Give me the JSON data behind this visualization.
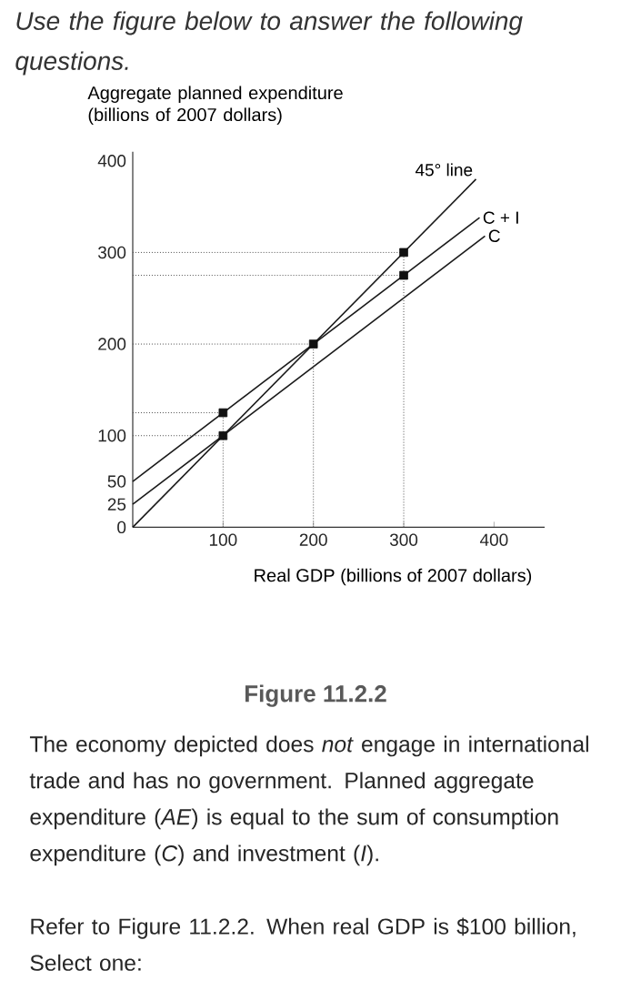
{
  "chart_data": {
    "type": "line",
    "title": "Use the figure below to answer the following questions.",
    "xlabel": "Real GDP (billions of 2007 dollars)",
    "ylabel": "Aggregate planned expenditure (billions of 2007 dollars)",
    "xlim": [
      0,
      456
    ],
    "ylim": [
      0,
      410
    ],
    "xticks": [
      100,
      200,
      300,
      400
    ],
    "yticks": [
      0,
      25,
      50,
      100,
      200,
      300,
      400
    ],
    "series": [
      {
        "name": "45° line",
        "color": "#1a1a1a",
        "x": [
          0,
          380
        ],
        "values": [
          0,
          380
        ]
      },
      {
        "name": "C + I",
        "color": "#1a1a1a",
        "x": [
          0,
          384
        ],
        "values": [
          50,
          338
        ]
      },
      {
        "name": "C",
        "color": "#1a1a1a",
        "x": [
          0,
          390
        ],
        "values": [
          25,
          318
        ]
      },
      {
        "line_style": "dotted",
        "color": "#4c4c4c",
        "x": [
          0,
          300
        ],
        "values": [
          300,
          300
        ]
      },
      {
        "line_style": "dotted",
        "color": "#4c4c4c",
        "x": [
          0,
          300
        ],
        "values": [
          275,
          275
        ]
      },
      {
        "line_style": "dotted",
        "color": "#4c4c4c",
        "x": [
          0,
          200
        ],
        "values": [
          200,
          200
        ]
      },
      {
        "line_style": "dotted",
        "color": "#4c4c4c",
        "x": [
          0,
          100
        ],
        "values": [
          125,
          125
        ]
      },
      {
        "line_style": "dotted",
        "color": "#4c4c4c",
        "x": [
          0,
          100
        ],
        "values": [
          100,
          100
        ]
      },
      {
        "line_style": "dotted",
        "color": "#4c4c4c",
        "x": [
          100,
          100
        ],
        "values": [
          0,
          125
        ]
      },
      {
        "line_style": "dotted",
        "color": "#4c4c4c",
        "x": [
          200,
          200
        ],
        "values": [
          0,
          200
        ]
      },
      {
        "line_style": "dotted",
        "color": "#4c4c4c",
        "x": [
          300,
          300
        ],
        "values": [
          0,
          300
        ]
      },
      {
        "type": "scatter",
        "marker": "square",
        "color": "#111111",
        "x": [
          100,
          100,
          200,
          300,
          300
        ],
        "values": [
          125,
          100,
          200,
          300,
          275
        ]
      }
    ],
    "annotations": [
      "Figure 11.2.2",
      "The economy depicted does *not* engage in international trade and has no government. Planned aggregate expenditure (*AE*) is equal to the sum of consumption expenditure (*C*) and investment (*I*).",
      "Refer to Figure 11.2.2. When real GDP is $100 billion, Select one:"
    ]
  }
}
